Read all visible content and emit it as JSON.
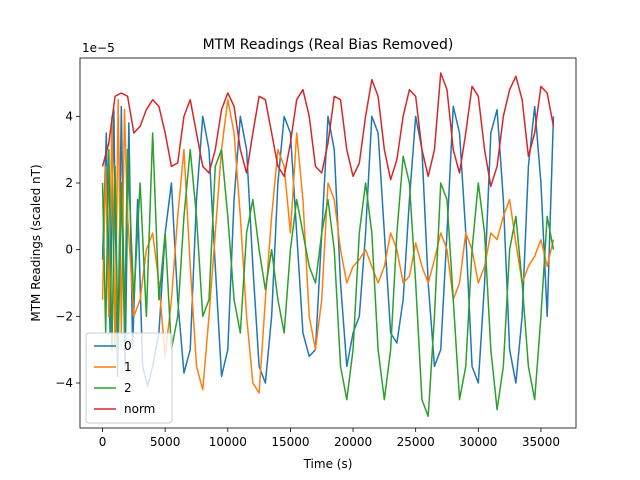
{
  "chart_data": {
    "type": "line",
    "title": "MTM Readings (Real Bias Removed)",
    "xlabel": "Time (s)",
    "ylabel": "MTM Readings (scaled nT)",
    "y_scale_note": "1e−5",
    "xlim": [
      -1800,
      37800
    ],
    "ylim": [
      -5.35,
      5.75
    ],
    "x_ticks": [
      0,
      5000,
      10000,
      15000,
      20000,
      25000,
      30000,
      35000
    ],
    "x_tick_labels": [
      "0",
      "5000",
      "10000",
      "15000",
      "20000",
      "25000",
      "30000",
      "35000"
    ],
    "y_ticks": [
      -4,
      -2,
      0,
      2,
      4
    ],
    "y_tick_labels": [
      "−4",
      "−2",
      "0",
      "2",
      "4"
    ],
    "grid": false,
    "legend_position": "lower-left",
    "series": [
      {
        "name": "0",
        "color": "#1f77b4",
        "x": [
          0,
          300,
          600,
          900,
          1200,
          1500,
          1800,
          2100,
          2400,
          2800,
          3200,
          3600,
          4000,
          4500,
          5000,
          5500,
          6000,
          6500,
          7000,
          7500,
          8000,
          8500,
          9000,
          9500,
          10000,
          10500,
          11000,
          11500,
          12000,
          12500,
          13000,
          13500,
          14000,
          14500,
          15000,
          15500,
          16000,
          16500,
          17000,
          17500,
          18000,
          18500,
          19000,
          19500,
          20000,
          20500,
          21000,
          21500,
          22000,
          22500,
          23000,
          23500,
          24000,
          24500,
          25000,
          25500,
          26000,
          26500,
          27000,
          27500,
          28000,
          28500,
          29000,
          29500,
          30000,
          30500,
          31000,
          31500,
          32000,
          32500,
          33000,
          33500,
          34000,
          34500,
          35000,
          35500,
          36000
        ],
        "y": [
          -0.3,
          3.5,
          -2.5,
          4.2,
          -3.8,
          4.3,
          -3.5,
          3.8,
          -2.9,
          1.5,
          -3.5,
          -4.1,
          -3.5,
          -2.5,
          0.5,
          2.0,
          -1.5,
          -3.7,
          -3.0,
          1.5,
          4.0,
          3.0,
          -0.5,
          -3.8,
          -3.0,
          1.5,
          4.0,
          3.0,
          -0.5,
          -3.5,
          -4.0,
          -2.0,
          2.0,
          4.0,
          3.5,
          0.5,
          -2.5,
          -3.2,
          -3.0,
          0.5,
          4.0,
          3.0,
          -1.0,
          -3.5,
          -2.5,
          -2.0,
          0.5,
          4.0,
          3.5,
          0.5,
          -2.5,
          -2.8,
          -1.5,
          1.5,
          4.0,
          3.0,
          -1.0,
          -3.5,
          -3.0,
          0.5,
          4.3,
          3.5,
          0.5,
          -3.5,
          -4.0,
          -1.0,
          3.5,
          4.2,
          1.5,
          -3.0,
          -4.0,
          -2.0,
          2.5,
          4.3,
          2.0,
          -2.0,
          4.0
        ]
      },
      {
        "name": "1",
        "color": "#ff7f0e",
        "x": [
          0,
          250,
          500,
          750,
          1000,
          1250,
          1500,
          1750,
          2000,
          2500,
          3000,
          3500,
          4000,
          4500,
          5000,
          5500,
          6000,
          6500,
          7000,
          7500,
          8000,
          8500,
          9000,
          9500,
          10000,
          10500,
          11000,
          11500,
          12000,
          12500,
          13000,
          13500,
          14000,
          14500,
          15000,
          15500,
          16000,
          16500,
          17000,
          17500,
          18000,
          18500,
          19000,
          19500,
          20000,
          20500,
          21000,
          21500,
          22000,
          22500,
          23000,
          23500,
          24000,
          24500,
          25000,
          25500,
          26000,
          26500,
          27000,
          27500,
          28000,
          28500,
          29000,
          29500,
          30000,
          30500,
          31000,
          31500,
          32000,
          32500,
          33000,
          33500,
          34000,
          34500,
          35000,
          35500,
          36000
        ],
        "y": [
          -1.5,
          2.5,
          -2.0,
          4.0,
          -3.0,
          4.5,
          -2.5,
          4.2,
          1.0,
          -2.0,
          -1.5,
          0.0,
          0.5,
          -1.0,
          -3.2,
          -1.5,
          1.0,
          3.0,
          -0.5,
          -3.5,
          -4.2,
          -2.0,
          0.5,
          3.0,
          4.5,
          3.5,
          1.0,
          -2.0,
          -4.0,
          -4.3,
          -1.5,
          1.0,
          3.0,
          2.5,
          0.5,
          3.5,
          1.5,
          -2.0,
          -3.0,
          -1.5,
          2.0,
          1.5,
          0.0,
          -1.0,
          -0.5,
          -0.3,
          0.0,
          -0.5,
          -1.0,
          -0.5,
          0.5,
          0.0,
          -1.0,
          -0.8,
          0.2,
          -0.5,
          -1.0,
          -0.3,
          0.5,
          0.0,
          -1.5,
          -1.0,
          0.5,
          0.0,
          -1.0,
          -0.5,
          0.5,
          0.3,
          1.0,
          1.5,
          0.2,
          -1.0,
          -0.5,
          -0.2,
          0.3,
          -0.5,
          0.3
        ]
      },
      {
        "name": "2",
        "color": "#2ca02c",
        "x": [
          0,
          250,
          500,
          750,
          1000,
          1250,
          1500,
          1750,
          2000,
          2500,
          3000,
          3500,
          4000,
          4500,
          5000,
          5500,
          6000,
          6500,
          7000,
          7500,
          8000,
          8500,
          9000,
          9500,
          10000,
          10500,
          11000,
          11500,
          12000,
          12500,
          13000,
          13500,
          14000,
          14500,
          15000,
          15500,
          16000,
          16500,
          17000,
          17500,
          18000,
          18500,
          19000,
          19500,
          20000,
          20500,
          21000,
          21500,
          22000,
          22500,
          23000,
          23500,
          24000,
          24500,
          25000,
          25500,
          26000,
          26500,
          27000,
          27500,
          28000,
          28500,
          29000,
          29500,
          30000,
          30500,
          31000,
          31500,
          32000,
          32500,
          33000,
          33500,
          34000,
          34500,
          35000,
          35500,
          36000
        ],
        "y": [
          2.0,
          -2.5,
          3.0,
          -3.0,
          2.5,
          -3.0,
          2.0,
          -2.5,
          3.0,
          -1.5,
          2.0,
          -2.0,
          3.5,
          -1.5,
          0.5,
          -3.0,
          -2.0,
          1.0,
          3.0,
          1.0,
          -2.0,
          -1.5,
          2.5,
          3.0,
          1.0,
          -1.5,
          -2.5,
          0.5,
          1.5,
          0.0,
          -1.2,
          0.0,
          -1.5,
          -2.5,
          0.0,
          1.5,
          0.5,
          -0.5,
          -1.0,
          0.5,
          1.5,
          0.0,
          -3.5,
          -4.5,
          -3.0,
          0.5,
          2.0,
          0.5,
          -3.0,
          -4.5,
          -3.0,
          0.5,
          2.8,
          2.0,
          -1.0,
          -4.5,
          -5.0,
          -2.0,
          2.0,
          1.5,
          -1.5,
          -4.5,
          -3.5,
          0.0,
          2.0,
          0.5,
          -3.0,
          -4.8,
          -3.5,
          0.0,
          1.0,
          -1.0,
          -3.5,
          -4.5,
          -2.0,
          1.0,
          0.0
        ]
      },
      {
        "name": "norm",
        "color": "#d62728",
        "x": [
          0,
          500,
          1000,
          1500,
          2000,
          2500,
          3000,
          3500,
          4000,
          4500,
          5000,
          5500,
          6000,
          6500,
          7000,
          7500,
          8000,
          8500,
          9000,
          9500,
          10000,
          10500,
          11000,
          11500,
          12000,
          12500,
          13000,
          13500,
          14000,
          14500,
          15000,
          15500,
          16000,
          16500,
          17000,
          17500,
          18000,
          18500,
          19000,
          19500,
          20000,
          20500,
          21000,
          21500,
          22000,
          22500,
          23000,
          23500,
          24000,
          24500,
          25000,
          25500,
          26000,
          26500,
          27000,
          27500,
          28000,
          28500,
          29000,
          29500,
          30000,
          30500,
          31000,
          31500,
          32000,
          32500,
          33000,
          33500,
          34000,
          34500,
          35000,
          35500,
          36000
        ],
        "y": [
          2.5,
          3.2,
          4.6,
          4.7,
          4.6,
          3.5,
          3.7,
          4.2,
          4.5,
          4.3,
          3.5,
          2.5,
          2.6,
          4.0,
          4.5,
          3.5,
          2.5,
          2.3,
          3.0,
          4.2,
          4.7,
          4.3,
          3.0,
          2.3,
          3.5,
          4.6,
          4.5,
          3.5,
          2.5,
          2.2,
          3.2,
          4.5,
          4.8,
          4.0,
          2.5,
          2.3,
          3.2,
          4.6,
          4.5,
          3.0,
          2.2,
          2.6,
          4.0,
          5.1,
          4.6,
          3.0,
          2.1,
          2.7,
          4.0,
          4.8,
          4.6,
          3.0,
          2.2,
          3.0,
          5.3,
          4.8,
          3.0,
          2.3,
          3.5,
          4.9,
          4.6,
          3.0,
          1.9,
          2.5,
          4.0,
          4.8,
          5.2,
          4.5,
          2.8,
          3.5,
          4.9,
          4.7,
          3.7
        ]
      }
    ]
  }
}
